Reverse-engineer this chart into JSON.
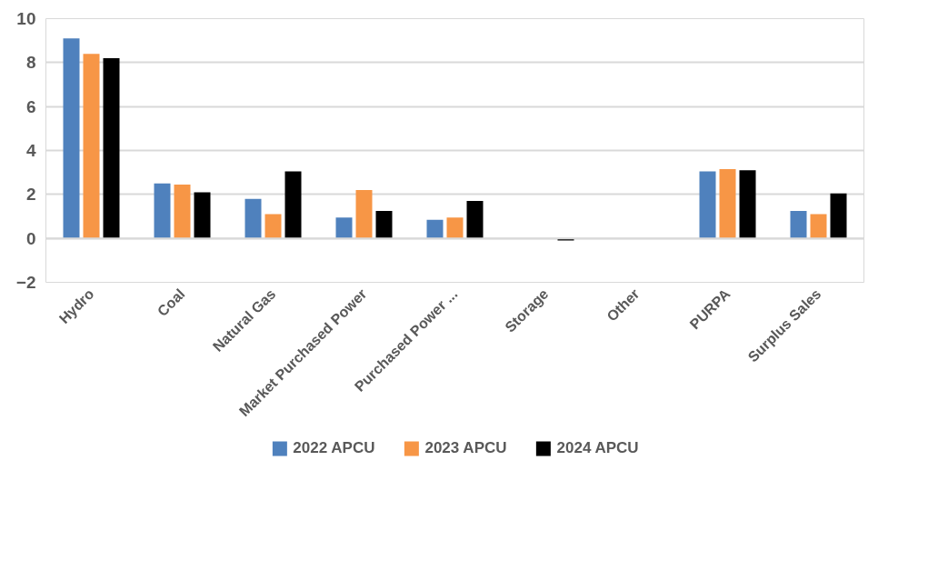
{
  "chart_data": {
    "type": "bar",
    "categories": [
      "Hydro",
      "Coal",
      "Natural Gas",
      "Market Purchased Power",
      "Purchased Power ...",
      "Storage",
      "Other",
      "PURPA",
      "Surplus Sales"
    ],
    "series": [
      {
        "name": "2022 APCU",
        "color": "#4f81bd",
        "values": [
          9.1,
          2.5,
          1.8,
          0.95,
          0.85,
          0,
          0,
          3.05,
          1.25
        ]
      },
      {
        "name": "2023 APCU",
        "color": "#f79646",
        "values": [
          8.4,
          2.45,
          1.1,
          2.2,
          0.95,
          0,
          0,
          3.15,
          1.1
        ]
      },
      {
        "name": "2024 APCU",
        "color": "#000000",
        "values": [
          8.2,
          2.1,
          3.05,
          1.25,
          1.7,
          -0.1,
          0,
          3.1,
          2.05
        ]
      }
    ],
    "ylim": [
      -2,
      10
    ],
    "yticks": [
      -2,
      0,
      2,
      4,
      6,
      8,
      10
    ],
    "grid": "y",
    "legend": "bottom"
  }
}
